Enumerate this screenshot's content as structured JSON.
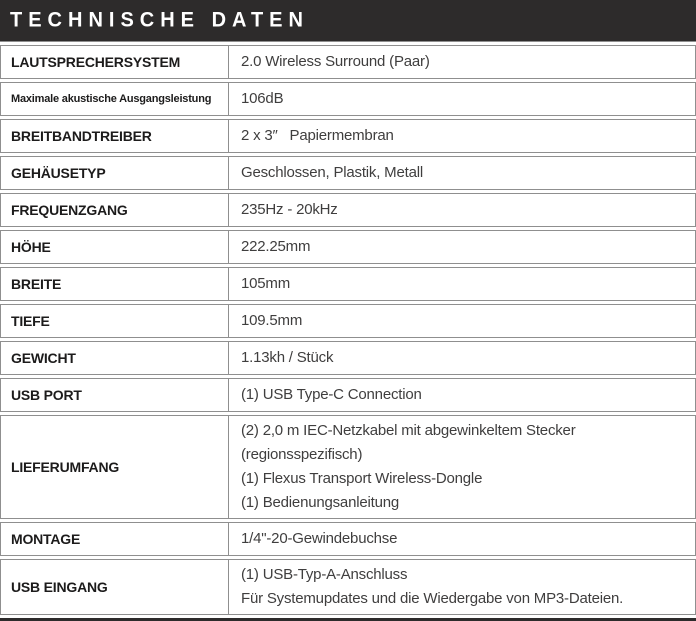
{
  "header": {
    "title": "TECHNISCHE DATEN"
  },
  "table": {
    "rows": [
      {
        "label": "LAUTSPRECHERSYSTEM",
        "small_label": false,
        "values": [
          "2.0 Wireless Surround (Paar)"
        ]
      },
      {
        "label": "Maximale akustische Ausgangsleistung",
        "small_label": true,
        "values": [
          "106dB"
        ]
      },
      {
        "label": "BREITBANDTREIBER",
        "small_label": false,
        "values": [
          "2 x 3″   Papiermembran"
        ]
      },
      {
        "label": "GEHÄUSETYP",
        "small_label": false,
        "values": [
          "Geschlossen, Plastik, Metall"
        ]
      },
      {
        "label": "FREQUENZGANG",
        "small_label": false,
        "values": [
          "235Hz - 20kHz"
        ]
      },
      {
        "label": "HÖHE",
        "small_label": false,
        "values": [
          "222.25mm"
        ]
      },
      {
        "label": "BREITE",
        "small_label": false,
        "values": [
          "105mm"
        ]
      },
      {
        "label": "TIEFE",
        "small_label": false,
        "values": [
          "109.5mm"
        ]
      },
      {
        "label": "GEWICHT",
        "small_label": false,
        "values": [
          "1.13kh / Stück"
        ]
      },
      {
        "label": "USB PORT",
        "small_label": false,
        "values": [
          "(1) USB Type-C Connection"
        ]
      },
      {
        "label": "LIEFERUMFANG",
        "small_label": false,
        "values": [
          "(2) 2,0 m IEC-Netzkabel mit abgewinkeltem Stecker (regionsspezifisch)",
          "(1) Flexus Transport Wireless-Dongle",
          "(1) Bedienungsanleitung"
        ]
      },
      {
        "label": "MONTAGE",
        "small_label": false,
        "values": [
          "1/4\"-20-Gewindebuchse"
        ]
      },
      {
        "label": "USB EINGANG",
        "small_label": false,
        "values": [
          "(1) USB-Typ-A-Anschluss",
          "Für Systemupdates und die Wiedergabe von MP3-Dateien."
        ]
      }
    ]
  },
  "colors": {
    "header_background": "#2d2b2b",
    "header_text": "#ffffff",
    "border": "#8f8f8f",
    "label_text": "#1c1b1b",
    "value_text": "#3f3e3e",
    "bottom_rule": "#2d2b2b"
  }
}
